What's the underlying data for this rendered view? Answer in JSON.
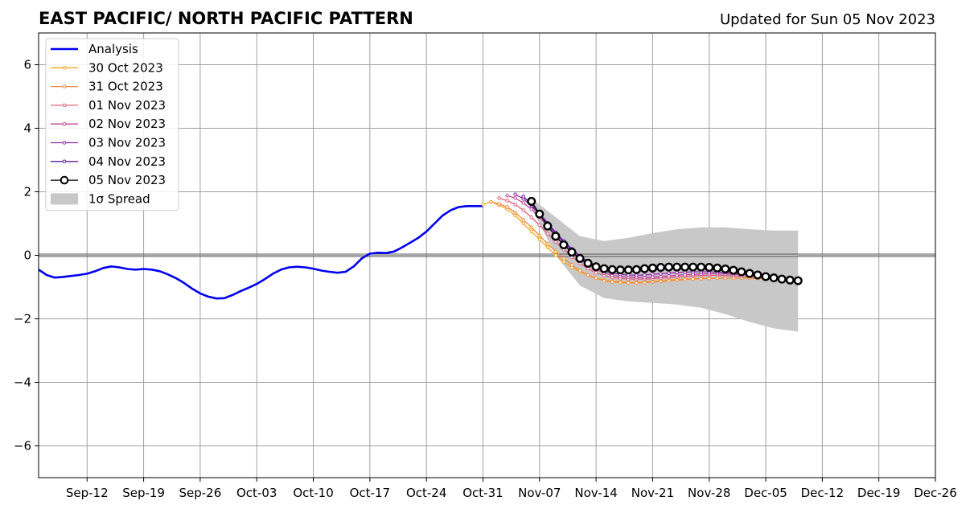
{
  "chart_data": {
    "type": "line",
    "title": "EAST PACIFIC/ NORTH PACIFIC PATTERN",
    "subtitle": "Updated for Sun 05 Nov 2023",
    "xlabel": "",
    "ylabel": "",
    "x_range": [
      "2023-09-06",
      "2023-12-26"
    ],
    "ylim": [
      -7,
      7
    ],
    "grid": true,
    "legend_placement": "top-left",
    "x_ticks": [
      {
        "date": "2023-09-12",
        "label": "Sep-12"
      },
      {
        "date": "2023-09-19",
        "label": "Sep-19"
      },
      {
        "date": "2023-09-26",
        "label": "Sep-26"
      },
      {
        "date": "2023-10-03",
        "label": "Oct-03"
      },
      {
        "date": "2023-10-10",
        "label": "Oct-10"
      },
      {
        "date": "2023-10-17",
        "label": "Oct-17"
      },
      {
        "date": "2023-10-24",
        "label": "Oct-24"
      },
      {
        "date": "2023-10-31",
        "label": "Oct-31"
      },
      {
        "date": "2023-11-07",
        "label": "Nov-07"
      },
      {
        "date": "2023-11-14",
        "label": "Nov-14"
      },
      {
        "date": "2023-11-21",
        "label": "Nov-21"
      },
      {
        "date": "2023-11-28",
        "label": "Nov-28"
      },
      {
        "date": "2023-12-05",
        "label": "Dec-05"
      },
      {
        "date": "2023-12-12",
        "label": "Dec-12"
      },
      {
        "date": "2023-12-19",
        "label": "Dec-19"
      },
      {
        "date": "2023-12-26",
        "label": "Dec-26"
      }
    ],
    "y_ticks": [
      {
        "value": 6,
        "label": "6"
      },
      {
        "value": 4,
        "label": "4"
      },
      {
        "value": 2,
        "label": "2"
      },
      {
        "value": 0,
        "label": "0"
      },
      {
        "value": -2,
        "label": "−2"
      },
      {
        "value": -4,
        "label": "−4"
      },
      {
        "value": -6,
        "label": "−6"
      }
    ],
    "spread": {
      "name": "1σ Spread",
      "color": "#c8c8c8",
      "x": [
        "2023-11-06",
        "2023-11-09",
        "2023-11-12",
        "2023-11-15",
        "2023-11-18",
        "2023-11-21",
        "2023-11-24",
        "2023-11-27",
        "2023-11-30",
        "2023-12-03",
        "2023-12-06",
        "2023-12-09"
      ],
      "upper": [
        1.8,
        1.2,
        0.6,
        0.45,
        0.55,
        0.7,
        0.82,
        0.88,
        0.88,
        0.82,
        0.78,
        0.78
      ],
      "lower": [
        1.5,
        0.0,
        -0.95,
        -1.35,
        -1.45,
        -1.5,
        -1.55,
        -1.65,
        -1.85,
        -2.1,
        -2.3,
        -2.4
      ]
    },
    "series": [
      {
        "name": "Analysis",
        "color": "#0000ee",
        "marker": "none",
        "x": [
          "2023-09-06",
          "2023-09-07",
          "2023-09-08",
          "2023-09-09",
          "2023-09-10",
          "2023-09-11",
          "2023-09-12",
          "2023-09-13",
          "2023-09-14",
          "2023-09-15",
          "2023-09-16",
          "2023-09-17",
          "2023-09-18",
          "2023-09-19",
          "2023-09-20",
          "2023-09-21",
          "2023-09-22",
          "2023-09-23",
          "2023-09-24",
          "2023-09-25",
          "2023-09-26",
          "2023-09-27",
          "2023-09-28",
          "2023-09-29",
          "2023-09-30",
          "2023-10-01",
          "2023-10-02",
          "2023-10-03",
          "2023-10-04",
          "2023-10-05",
          "2023-10-06",
          "2023-10-07",
          "2023-10-08",
          "2023-10-09",
          "2023-10-10",
          "2023-10-11",
          "2023-10-12",
          "2023-10-13",
          "2023-10-14",
          "2023-10-15",
          "2023-10-16",
          "2023-10-17",
          "2023-10-18",
          "2023-10-19",
          "2023-10-20",
          "2023-10-21",
          "2023-10-22",
          "2023-10-23",
          "2023-10-24",
          "2023-10-25",
          "2023-10-26",
          "2023-10-27",
          "2023-10-28",
          "2023-10-29",
          "2023-10-30",
          "2023-10-31"
        ],
        "values": [
          -0.45,
          -0.62,
          -0.7,
          -0.68,
          -0.65,
          -0.62,
          -0.58,
          -0.5,
          -0.4,
          -0.35,
          -0.38,
          -0.43,
          -0.45,
          -0.43,
          -0.45,
          -0.5,
          -0.6,
          -0.72,
          -0.87,
          -1.05,
          -1.2,
          -1.3,
          -1.36,
          -1.35,
          -1.25,
          -1.13,
          -1.02,
          -0.9,
          -0.75,
          -0.58,
          -0.45,
          -0.38,
          -0.36,
          -0.38,
          -0.42,
          -0.48,
          -0.52,
          -0.55,
          -0.52,
          -0.35,
          -0.1,
          0.05,
          0.08,
          0.07,
          0.12,
          0.25,
          0.4,
          0.55,
          0.75,
          1.0,
          1.25,
          1.42,
          1.52,
          1.55,
          1.55,
          1.55
        ]
      },
      {
        "name": "30 Oct 2023",
        "color": "#f5a623",
        "marker": "dot",
        "x": [
          "2023-10-31",
          "2023-11-01",
          "2023-11-02",
          "2023-11-03",
          "2023-11-04",
          "2023-11-05",
          "2023-11-06",
          "2023-11-07",
          "2023-11-08",
          "2023-11-09",
          "2023-11-10",
          "2023-11-11",
          "2023-11-12",
          "2023-11-13",
          "2023-11-14",
          "2023-11-15",
          "2023-11-16",
          "2023-11-17",
          "2023-11-18",
          "2023-11-19",
          "2023-11-20",
          "2023-11-21",
          "2023-11-22",
          "2023-11-23",
          "2023-11-24",
          "2023-11-25",
          "2023-11-26",
          "2023-11-27",
          "2023-11-28",
          "2023-11-29",
          "2023-11-30",
          "2023-12-01",
          "2023-12-02",
          "2023-12-03",
          "2023-12-04",
          "2023-12-05",
          "2023-12-06",
          "2023-12-07",
          "2023-12-08",
          "2023-12-09"
        ],
        "values": [
          1.6,
          1.68,
          1.58,
          1.45,
          1.25,
          1.0,
          0.75,
          0.5,
          0.25,
          0.0,
          -0.2,
          -0.38,
          -0.52,
          -0.63,
          -0.72,
          -0.78,
          -0.82,
          -0.84,
          -0.85,
          -0.85,
          -0.84,
          -0.82,
          -0.8,
          -0.78,
          -0.76,
          -0.75,
          -0.74,
          -0.73,
          -0.72,
          -0.72,
          -0.72,
          -0.72,
          -0.72,
          -0.72,
          -0.73,
          -0.74,
          -0.75,
          -0.76,
          -0.77,
          -0.78
        ]
      },
      {
        "name": "31 Oct 2023",
        "color": "#f08a3c",
        "marker": "dot",
        "x": [
          "2023-11-01",
          "2023-11-02",
          "2023-11-03",
          "2023-11-04",
          "2023-11-05",
          "2023-11-06",
          "2023-11-07",
          "2023-11-08",
          "2023-11-09",
          "2023-11-10",
          "2023-11-11",
          "2023-11-12",
          "2023-11-13",
          "2023-11-14",
          "2023-11-15",
          "2023-11-16",
          "2023-11-17",
          "2023-11-18",
          "2023-11-19",
          "2023-11-20",
          "2023-11-21",
          "2023-11-22",
          "2023-11-23",
          "2023-11-24",
          "2023-11-25",
          "2023-11-26",
          "2023-11-27",
          "2023-11-28",
          "2023-11-29",
          "2023-11-30",
          "2023-12-01",
          "2023-12-02",
          "2023-12-03",
          "2023-12-04",
          "2023-12-05",
          "2023-12-06",
          "2023-12-07",
          "2023-12-08",
          "2023-12-09"
        ],
        "values": [
          1.68,
          1.62,
          1.52,
          1.35,
          1.12,
          0.88,
          0.62,
          0.36,
          0.12,
          -0.1,
          -0.3,
          -0.48,
          -0.62,
          -0.72,
          -0.8,
          -0.84,
          -0.86,
          -0.87,
          -0.87,
          -0.86,
          -0.84,
          -0.82,
          -0.8,
          -0.78,
          -0.76,
          -0.75,
          -0.74,
          -0.73,
          -0.72,
          -0.72,
          -0.72,
          -0.72,
          -0.72,
          -0.72,
          -0.73,
          -0.74,
          -0.75,
          -0.76,
          -0.77
        ]
      },
      {
        "name": "01 Nov 2023",
        "color": "#e0607a",
        "marker": "dot",
        "x": [
          "2023-11-02",
          "2023-11-03",
          "2023-11-04",
          "2023-11-05",
          "2023-11-06",
          "2023-11-07",
          "2023-11-08",
          "2023-11-09",
          "2023-11-10",
          "2023-11-11",
          "2023-11-12",
          "2023-11-13",
          "2023-11-14",
          "2023-11-15",
          "2023-11-16",
          "2023-11-17",
          "2023-11-18",
          "2023-11-19",
          "2023-11-20",
          "2023-11-21",
          "2023-11-22",
          "2023-11-23",
          "2023-11-24",
          "2023-11-25",
          "2023-11-26",
          "2023-11-27",
          "2023-11-28",
          "2023-11-29",
          "2023-11-30",
          "2023-12-01",
          "2023-12-02",
          "2023-12-03",
          "2023-12-04",
          "2023-12-05",
          "2023-12-06",
          "2023-12-07",
          "2023-12-08",
          "2023-12-09"
        ],
        "values": [
          1.8,
          1.72,
          1.6,
          1.42,
          1.2,
          0.95,
          0.68,
          0.42,
          0.18,
          -0.05,
          -0.25,
          -0.42,
          -0.55,
          -0.64,
          -0.7,
          -0.73,
          -0.75,
          -0.75,
          -0.75,
          -0.74,
          -0.72,
          -0.7,
          -0.68,
          -0.66,
          -0.65,
          -0.64,
          -0.63,
          -0.63,
          -0.64,
          -0.65,
          -0.66,
          -0.67,
          -0.68,
          -0.7,
          -0.72,
          -0.74,
          -0.76,
          -0.78
        ]
      },
      {
        "name": "02 Nov 2023",
        "color": "#c0459a",
        "marker": "dot",
        "x": [
          "2023-11-03",
          "2023-11-04",
          "2023-11-05",
          "2023-11-06",
          "2023-11-07",
          "2023-11-08",
          "2023-11-09",
          "2023-11-10",
          "2023-11-11",
          "2023-11-12",
          "2023-11-13",
          "2023-11-14",
          "2023-11-15",
          "2023-11-16",
          "2023-11-17",
          "2023-11-18",
          "2023-11-19",
          "2023-11-20",
          "2023-11-21",
          "2023-11-22",
          "2023-11-23",
          "2023-11-24",
          "2023-11-25",
          "2023-11-26",
          "2023-11-27",
          "2023-11-28",
          "2023-11-29",
          "2023-11-30",
          "2023-12-01",
          "2023-12-02",
          "2023-12-03",
          "2023-12-04",
          "2023-12-05",
          "2023-12-06",
          "2023-12-07",
          "2023-12-08",
          "2023-12-09"
        ],
        "values": [
          1.88,
          1.8,
          1.65,
          1.45,
          1.2,
          0.92,
          0.62,
          0.35,
          0.1,
          -0.12,
          -0.3,
          -0.45,
          -0.56,
          -0.63,
          -0.67,
          -0.69,
          -0.7,
          -0.7,
          -0.69,
          -0.67,
          -0.65,
          -0.63,
          -0.61,
          -0.6,
          -0.59,
          -0.58,
          -0.58,
          -0.59,
          -0.6,
          -0.61,
          -0.62,
          -0.64,
          -0.66,
          -0.68,
          -0.7,
          -0.72,
          -0.75
        ]
      },
      {
        "name": "03 Nov 2023",
        "color": "#8a2aa8",
        "marker": "dot",
        "x": [
          "2023-11-04",
          "2023-11-05",
          "2023-11-06",
          "2023-11-07",
          "2023-11-08",
          "2023-11-09",
          "2023-11-10",
          "2023-11-11",
          "2023-11-12",
          "2023-11-13",
          "2023-11-14",
          "2023-11-15",
          "2023-11-16",
          "2023-11-17",
          "2023-11-18",
          "2023-11-19",
          "2023-11-20",
          "2023-11-21",
          "2023-11-22",
          "2023-11-23",
          "2023-11-24",
          "2023-11-25",
          "2023-11-26",
          "2023-11-27",
          "2023-11-28",
          "2023-11-29",
          "2023-11-30",
          "2023-12-01",
          "2023-12-02",
          "2023-12-03",
          "2023-12-04",
          "2023-12-05",
          "2023-12-06",
          "2023-12-07",
          "2023-12-08",
          "2023-12-09"
        ],
        "values": [
          1.92,
          1.78,
          1.55,
          1.28,
          0.98,
          0.68,
          0.4,
          0.15,
          -0.07,
          -0.25,
          -0.4,
          -0.5,
          -0.56,
          -0.6,
          -0.62,
          -0.63,
          -0.62,
          -0.6,
          -0.58,
          -0.56,
          -0.54,
          -0.53,
          -0.52,
          -0.52,
          -0.52,
          -0.53,
          -0.54,
          -0.56,
          -0.58,
          -0.6,
          -0.62,
          -0.65,
          -0.68,
          -0.7,
          -0.73,
          -0.76
        ]
      },
      {
        "name": "04 Nov 2023",
        "color": "#5a1a9a",
        "marker": "dot",
        "x": [
          "2023-11-05",
          "2023-11-06",
          "2023-11-07",
          "2023-11-08",
          "2023-11-09",
          "2023-11-10",
          "2023-11-11",
          "2023-11-12",
          "2023-11-13",
          "2023-11-14",
          "2023-11-15",
          "2023-11-16",
          "2023-11-17",
          "2023-11-18",
          "2023-11-19",
          "2023-11-20",
          "2023-11-21",
          "2023-11-22",
          "2023-11-23",
          "2023-11-24",
          "2023-11-25",
          "2023-11-26",
          "2023-11-27",
          "2023-11-28",
          "2023-11-29",
          "2023-11-30",
          "2023-12-01",
          "2023-12-02",
          "2023-12-03",
          "2023-12-04",
          "2023-12-05",
          "2023-12-06",
          "2023-12-07",
          "2023-12-08",
          "2023-12-09"
        ],
        "values": [
          1.85,
          1.6,
          1.32,
          1.02,
          0.72,
          0.45,
          0.2,
          -0.02,
          -0.2,
          -0.33,
          -0.42,
          -0.47,
          -0.5,
          -0.51,
          -0.5,
          -0.48,
          -0.46,
          -0.44,
          -0.43,
          -0.42,
          -0.42,
          -0.42,
          -0.43,
          -0.44,
          -0.46,
          -0.48,
          -0.5,
          -0.53,
          -0.56,
          -0.6,
          -0.64,
          -0.68,
          -0.72,
          -0.76,
          -0.8
        ]
      },
      {
        "name": "05 Nov 2023",
        "color": "#000000",
        "marker": "circle",
        "x": [
          "2023-11-06",
          "2023-11-07",
          "2023-11-08",
          "2023-11-09",
          "2023-11-10",
          "2023-11-11",
          "2023-11-12",
          "2023-11-13",
          "2023-11-14",
          "2023-11-15",
          "2023-11-16",
          "2023-11-17",
          "2023-11-18",
          "2023-11-19",
          "2023-11-20",
          "2023-11-21",
          "2023-11-22",
          "2023-11-23",
          "2023-11-24",
          "2023-11-25",
          "2023-11-26",
          "2023-11-27",
          "2023-11-28",
          "2023-11-29",
          "2023-11-30",
          "2023-12-01",
          "2023-12-02",
          "2023-12-03",
          "2023-12-04",
          "2023-12-05",
          "2023-12-06",
          "2023-12-07",
          "2023-12-08",
          "2023-12-09"
        ],
        "values": [
          1.7,
          1.3,
          0.92,
          0.6,
          0.33,
          0.1,
          -0.1,
          -0.25,
          -0.36,
          -0.42,
          -0.45,
          -0.46,
          -0.46,
          -0.45,
          -0.42,
          -0.4,
          -0.38,
          -0.37,
          -0.37,
          -0.37,
          -0.37,
          -0.37,
          -0.38,
          -0.4,
          -0.43,
          -0.47,
          -0.52,
          -0.57,
          -0.62,
          -0.67,
          -0.71,
          -0.75,
          -0.78,
          -0.8
        ]
      }
    ]
  }
}
